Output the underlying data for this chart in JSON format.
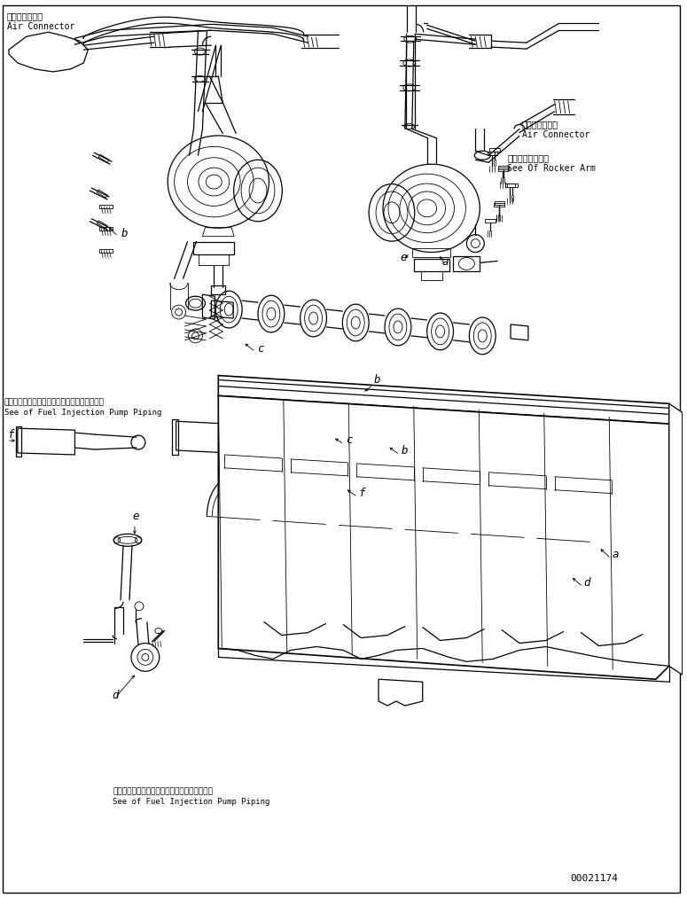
{
  "background_color": "#ffffff",
  "figure_width": 7.75,
  "figure_height": 10.13,
  "dpi": 100,
  "part_number": "00021174",
  "labels": {
    "top_left_jp": "エアーコネクタ",
    "top_left_en": "Air Connector",
    "top_right_jp": "エアーコネクタ",
    "top_right_en": "Air Connector",
    "rocker_arm_jp": "ロッカアーム参照",
    "rocker_arm_en": "See Of Rocker Arm",
    "fuel_pump_mid_jp": "フェルインジェクションポンプパイピング参照",
    "fuel_pump_mid_en": "See of Fuel Injection Pump Piping",
    "fuel_pump_bot_jp": "フェルインジェクションポンプパイピング参照",
    "fuel_pump_bot_en": "See of Fuel Injection Pump Piping"
  },
  "lw_thin": 0.6,
  "lw_med": 0.9,
  "lw_thick": 1.2
}
